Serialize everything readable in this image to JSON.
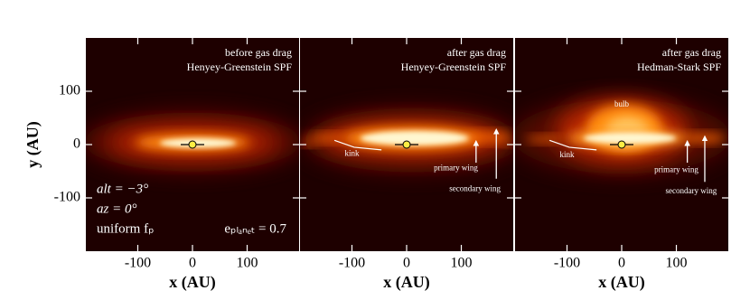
{
  "chart_data": [
    {
      "type": "image",
      "title": [
        "before gas drag",
        "Henyey-Greenstein SPF"
      ],
      "xlabel": "x (AU)",
      "ylabel": "y (AU)",
      "xlim": [
        -195,
        195
      ],
      "ylim": [
        -200,
        200
      ],
      "xticks": [
        -100,
        0,
        100
      ],
      "yticks": [
        -100,
        0,
        100
      ],
      "planet": {
        "x": 0,
        "y": 0
      },
      "annotations": [
        "alt = −3°",
        "az = 0°",
        "uniform fₚ",
        "eₚₗₐₙₑₜ = 0.7"
      ]
    },
    {
      "type": "image",
      "title": [
        "after gas drag",
        "Henyey-Greenstein SPF"
      ],
      "xlabel": "x (AU)",
      "xlim": [
        -195,
        195
      ],
      "ylim": [
        -200,
        200
      ],
      "xticks": [
        -100,
        0,
        100
      ],
      "yticks": [
        -100,
        0,
        100
      ],
      "planet": {
        "x": 0,
        "y": 0
      },
      "annotations": [
        "kink",
        "primary wing",
        "secondary wing"
      ]
    },
    {
      "type": "image",
      "title": [
        "after gas drag",
        "Hedman-Stark SPF"
      ],
      "xlabel": "x (AU)",
      "xlim": [
        -195,
        195
      ],
      "ylim": [
        -200,
        200
      ],
      "xticks": [
        -100,
        0,
        100
      ],
      "yticks": [
        -100,
        0,
        100
      ],
      "planet": {
        "x": 0,
        "y": 0
      },
      "annotations": [
        "kink",
        "primary wing",
        "secondary wing",
        "bulb"
      ]
    }
  ]
}
